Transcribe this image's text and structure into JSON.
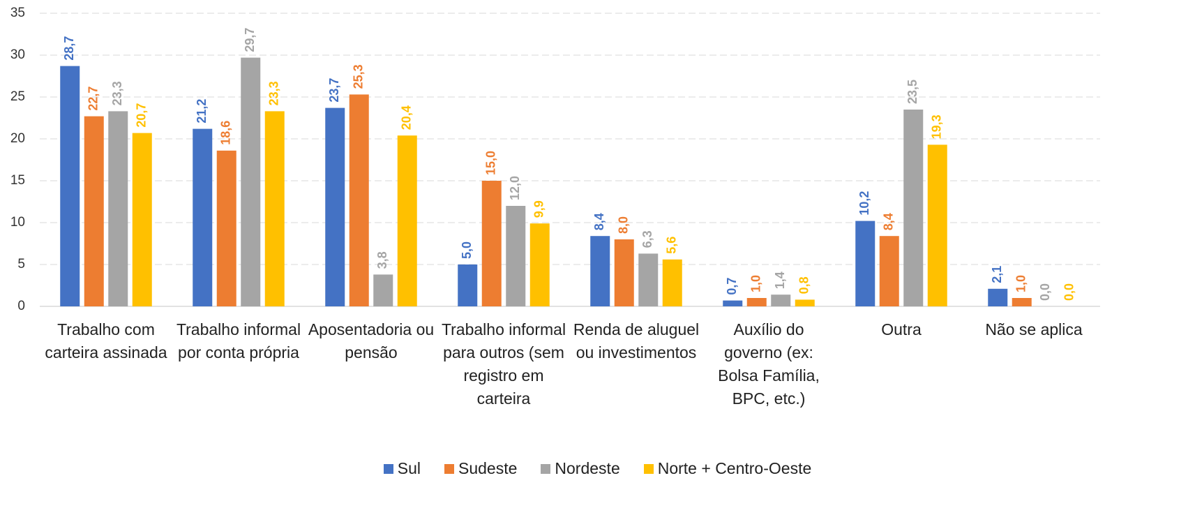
{
  "chart_data": {
    "type": "bar",
    "categories": [
      "Trabalho com carteira assinada",
      "Trabalho informal por conta própria",
      "Aposentadoria ou pensão",
      "Trabalho informal para outros (sem registro em carteira",
      "Renda de aluguel ou investimentos",
      "Auxílio do governo (ex: Bolsa Família, BPC, etc.)",
      "Outra",
      "Não se aplica"
    ],
    "series": [
      {
        "name": "Sul",
        "color": "#4472c4",
        "values": [
          28.7,
          21.2,
          23.7,
          5.0,
          8.4,
          0.7,
          10.2,
          2.1
        ],
        "value_labels": [
          "28,7",
          "21,2",
          "23,7",
          "5,0",
          "8,4",
          "0,7",
          "10,2",
          "2,1"
        ]
      },
      {
        "name": "Sudeste",
        "color": "#ed7d31",
        "values": [
          22.7,
          18.6,
          25.3,
          15.0,
          8.0,
          1.0,
          8.4,
          1.0
        ],
        "value_labels": [
          "22,7",
          "18,6",
          "25,3",
          "15,0",
          "8,0",
          "1,0",
          "8,4",
          "1,0"
        ]
      },
      {
        "name": "Nordeste",
        "color": "#a5a5a5",
        "values": [
          23.3,
          29.7,
          3.8,
          12.0,
          6.3,
          1.4,
          23.5,
          0.0
        ],
        "value_labels": [
          "23,3",
          "29,7",
          "3,8",
          "12,0",
          "6,3",
          "1,4",
          "23,5",
          "0,0"
        ]
      },
      {
        "name": "Norte + Centro-Oeste",
        "color": "#ffc000",
        "values": [
          20.7,
          23.3,
          20.4,
          9.9,
          5.6,
          0.8,
          19.3,
          0.0
        ],
        "value_labels": [
          "20,7",
          "23,3",
          "20,4",
          "9,9",
          "5,6",
          "0,8",
          "19,3",
          "0,0"
        ]
      }
    ],
    "ylim": [
      0,
      35
    ],
    "yticks": [
      0,
      5,
      10,
      15,
      20,
      25,
      30,
      35
    ],
    "grid": true,
    "legend": "bottom"
  }
}
